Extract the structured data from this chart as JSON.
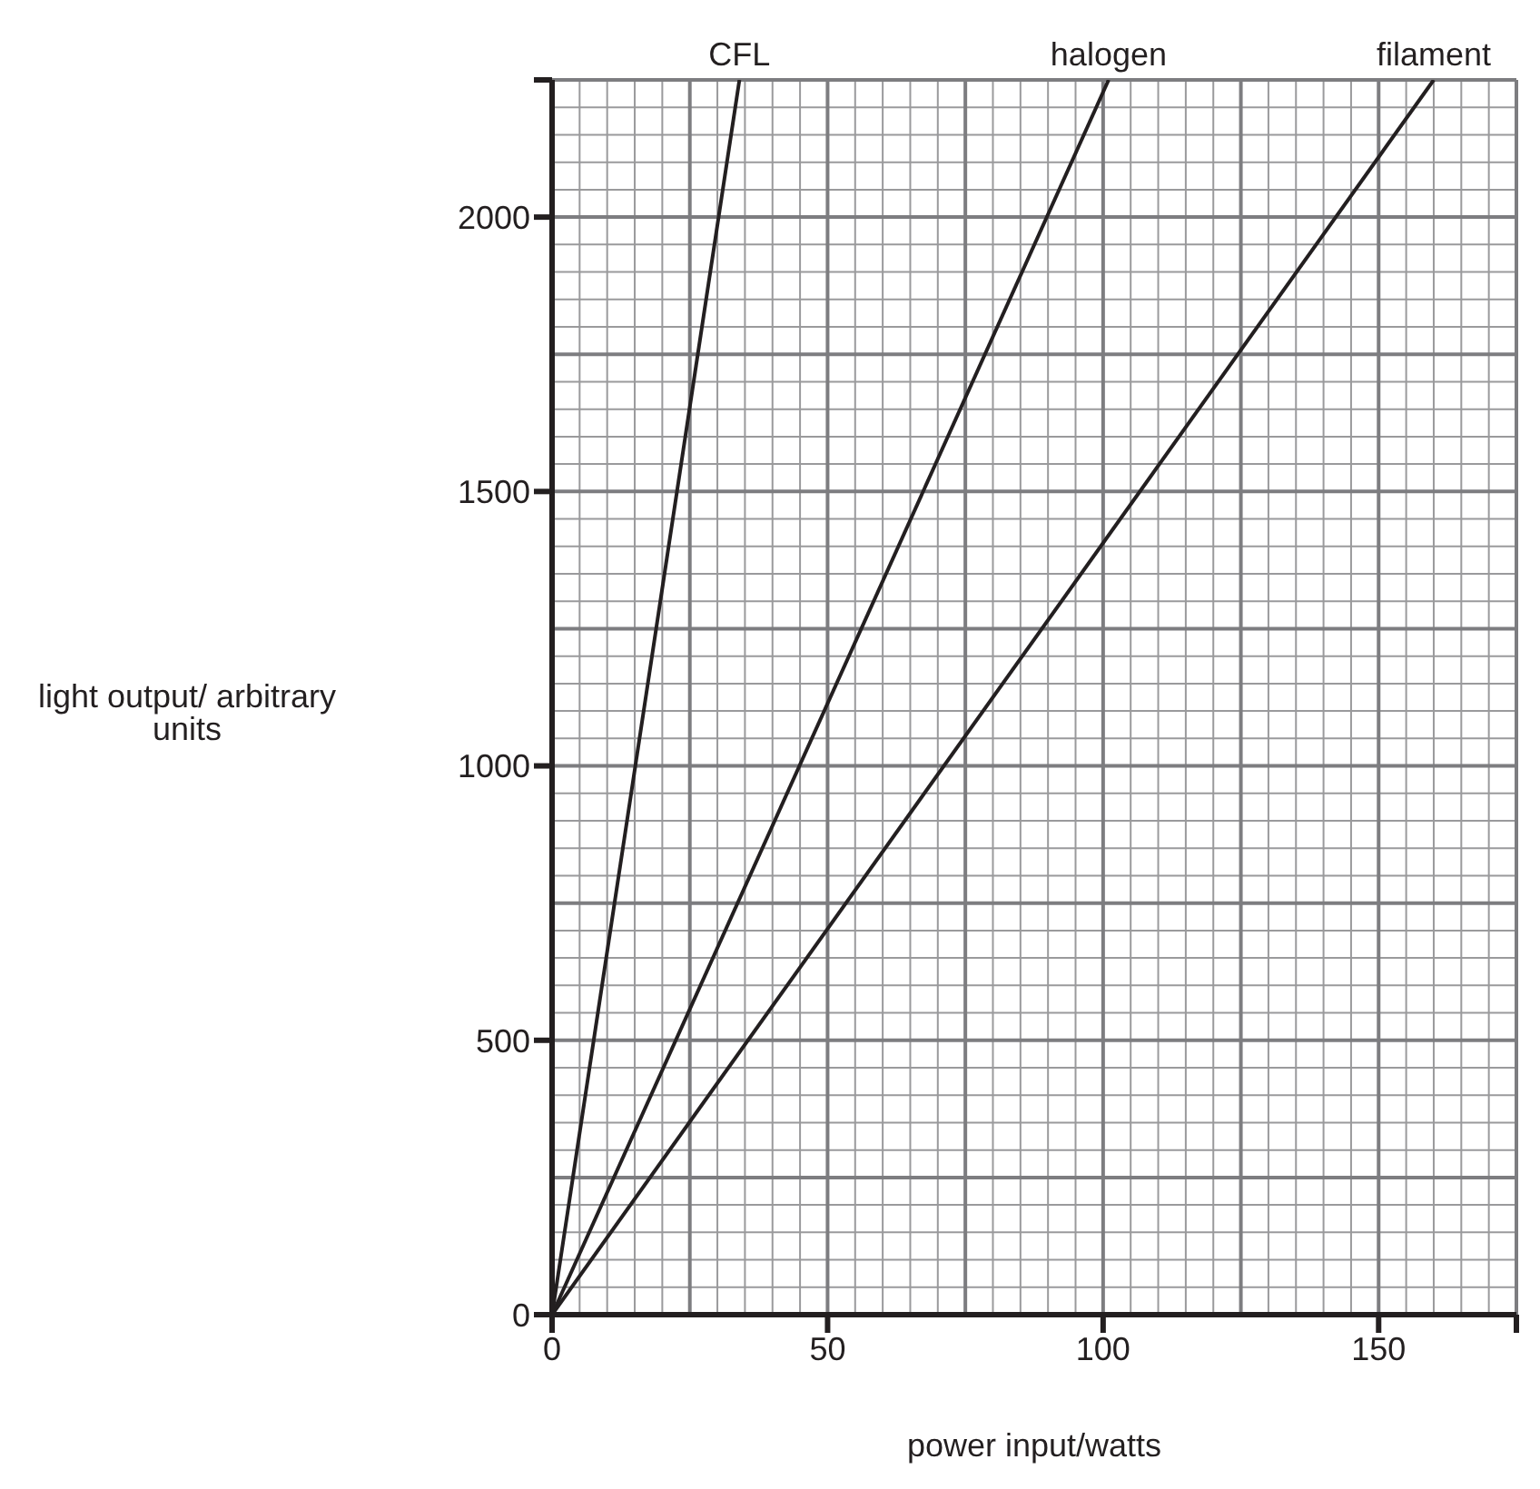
{
  "chart_data": {
    "type": "line",
    "xlabel": "power input/watts",
    "ylabel": "light output/ arbitrary units",
    "xlim": [
      0,
      175
    ],
    "ylim": [
      0,
      2250
    ],
    "xticks": [
      0,
      50,
      100,
      150,
      {
        "value": 175,
        "label": null
      }
    ],
    "yticks": [
      0,
      500,
      1000,
      1500,
      2000,
      {
        "value": 2250,
        "label": null
      }
    ],
    "grid": true,
    "marker": "none",
    "line_style": "solid",
    "series": [
      {
        "name": "CFL",
        "color": "#231f20",
        "x": [
          0,
          34
        ],
        "values": [
          0,
          2250
        ]
      },
      {
        "name": "halogen",
        "color": "#231f20",
        "x": [
          0,
          101
        ],
        "values": [
          0,
          2250
        ]
      },
      {
        "name": "filament",
        "color": "#231f20",
        "x": [
          0,
          160
        ],
        "values": [
          0,
          2250
        ]
      }
    ]
  }
}
